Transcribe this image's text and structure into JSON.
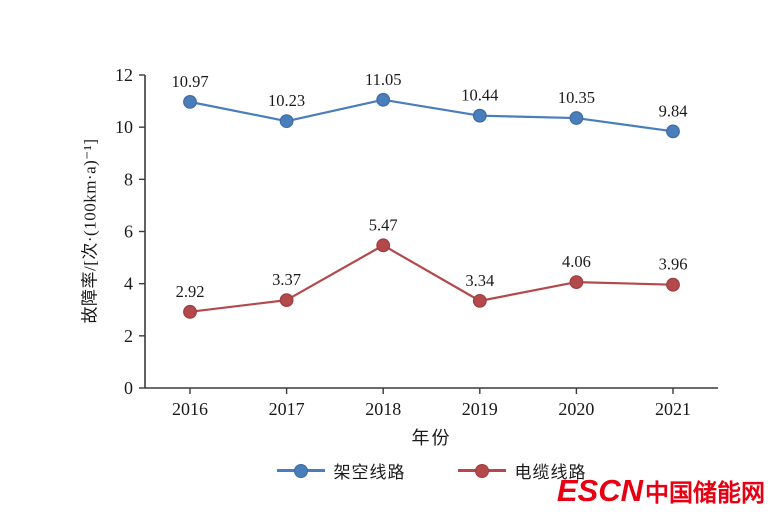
{
  "chart_data": {
    "type": "line",
    "categories": [
      "2016",
      "2017",
      "2018",
      "2019",
      "2020",
      "2021"
    ],
    "series": [
      {
        "name": "架空线路",
        "color": "#4a7ebb",
        "marker_stroke": "#3d6ba3",
        "values": [
          10.97,
          10.23,
          11.05,
          10.44,
          10.35,
          9.84
        ]
      },
      {
        "name": "电缆线路",
        "color": "#b4494b",
        "marker_stroke": "#9c3d3f",
        "values": [
          2.92,
          3.37,
          5.47,
          3.34,
          4.06,
          3.96
        ]
      }
    ],
    "xlabel": "年份",
    "ylabel": "故障率/[次·(100km·a)⁻¹]",
    "ylim": [
      0,
      12
    ],
    "ytick_step": 2,
    "yticks": [
      "0",
      "2",
      "4",
      "6",
      "8",
      "10",
      "12"
    ],
    "grid": false,
    "legend_position": "bottom",
    "axis_color": "#3a3a3a",
    "label_color": "#1a1a1a"
  },
  "watermark": {
    "escn": "ESCN",
    "site": "中国储能网",
    "color": "#e60012"
  }
}
